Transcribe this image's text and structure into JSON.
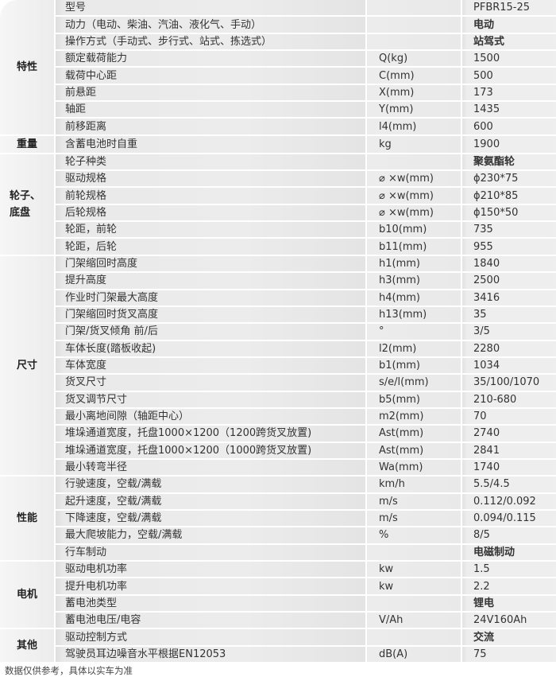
{
  "groups": [
    {
      "name": "特性",
      "rows": [
        {
          "label": "型号",
          "unit": "",
          "value": "PFBR15-25"
        },
        {
          "label": "动力（电动、柴油、汽油、液化气、手动）",
          "unit": "",
          "value": "电动"
        },
        {
          "label": "操作方式（手动式、步行式、站式、拣选式）",
          "unit": "",
          "value": "站驾式"
        },
        {
          "label": "额定载荷能力",
          "unit": "Q(kg)",
          "value": "1500"
        },
        {
          "label": "载荷中心距",
          "unit": "C(mm)",
          "value": "500"
        },
        {
          "label": "前悬距",
          "unit": "X(mm)",
          "value": "173"
        },
        {
          "label": "轴距",
          "unit": "Y(mm)",
          "value": "1435"
        },
        {
          "label": "前移距离",
          "unit": "l4(mm)",
          "value": "600"
        }
      ]
    },
    {
      "name": "重量",
      "rows": [
        {
          "label": "含蓄电池时自重",
          "unit": "kg",
          "value": "1900"
        }
      ]
    },
    {
      "name": "轮子、底盘",
      "rows": [
        {
          "label": "轮子种类",
          "unit": "",
          "value": "聚氨酯轮"
        },
        {
          "label": "驱动规格",
          "unit": "⌀ ×w(mm)",
          "value": "ϕ230*75"
        },
        {
          "label": "前轮规格",
          "unit": "⌀ ×w(mm)",
          "value": "ϕ210*85"
        },
        {
          "label": "后轮规格",
          "unit": "⌀ ×w(mm)",
          "value": "ϕ150*50"
        },
        {
          "label": "轮距，前轮",
          "unit": "b10(mm)",
          "value": "735"
        },
        {
          "label": "轮距，后轮",
          "unit": "b11(mm)",
          "value": "955"
        }
      ]
    },
    {
      "name": "尺寸",
      "rows": [
        {
          "label": "门架缩回时高度",
          "unit": "h1(mm)",
          "value": "1840"
        },
        {
          "label": "提升高度",
          "unit": "h3(mm)",
          "value": "2500"
        },
        {
          "label": "作业时门架最大高度",
          "unit": "h4(mm)",
          "value": "3416"
        },
        {
          "label": "门架缩回时货叉高度",
          "unit": "h13(mm)",
          "value": "35"
        },
        {
          "label": "门架/货叉倾角 前/后",
          "unit": "°",
          "value": "3/5"
        },
        {
          "label": "车体长度(踏板收起)",
          "unit": "l2(mm)",
          "value": "2280"
        },
        {
          "label": "车体宽度",
          "unit": "b1(mm)",
          "value": "1034"
        },
        {
          "label": "货叉尺寸",
          "unit": "s/e/l(mm)",
          "value": "35/100/1070"
        },
        {
          "label": "货叉调节尺寸",
          "unit": "b5(mm)",
          "value": "210-680"
        },
        {
          "label": "最小离地间隙（轴距中心）",
          "unit": "m2(mm)",
          "value": "70"
        },
        {
          "label": "堆垛通道宽度，托盘1000×1200（1200跨货叉放置)",
          "unit": "Ast(mm)",
          "value": "2740"
        },
        {
          "label": "堆垛通道宽度，托盘1000×1200（1000跨货叉放置)",
          "unit": "Ast(mm)",
          "value": "2841"
        },
        {
          "label": "最小转弯半径",
          "unit": "Wa(mm)",
          "value": "1740"
        }
      ]
    },
    {
      "name": "性能",
      "rows": [
        {
          "label": "行驶速度，空载/满载",
          "unit": "km/h",
          "value": "5.5/4.5"
        },
        {
          "label": "起升速度，空载/满载",
          "unit": "m/s",
          "value": "0.112/0.092"
        },
        {
          "label": "下降速度，空载/满载",
          "unit": "m/s",
          "value": "0.094/0.115"
        },
        {
          "label": "最大爬坡能力，空载/满载",
          "unit": "%",
          "value": "8/5"
        },
        {
          "label": "行车制动",
          "unit": "",
          "value": "电磁制动"
        }
      ]
    },
    {
      "name": "电机",
      "rows": [
        {
          "label": "驱动电机功率",
          "unit": "kw",
          "value": "1.5"
        },
        {
          "label": "提升电机功率",
          "unit": "kw",
          "value": "2.2"
        },
        {
          "label": "蓄电池类型",
          "unit": "",
          "value": "锂电"
        },
        {
          "label": "蓄电池电压/电容",
          "unit": "V/Ah",
          "value": "24V160Ah"
        }
      ]
    },
    {
      "name": "其他",
      "rows": [
        {
          "label": "驱动控制方式",
          "unit": "",
          "value": "交流"
        },
        {
          "label": "驾驶员耳边噪音水平根据EN12053",
          "unit": "dB(A)",
          "value": "75"
        }
      ]
    }
  ],
  "footnote": "数据仅供参考，具体以实车为准"
}
